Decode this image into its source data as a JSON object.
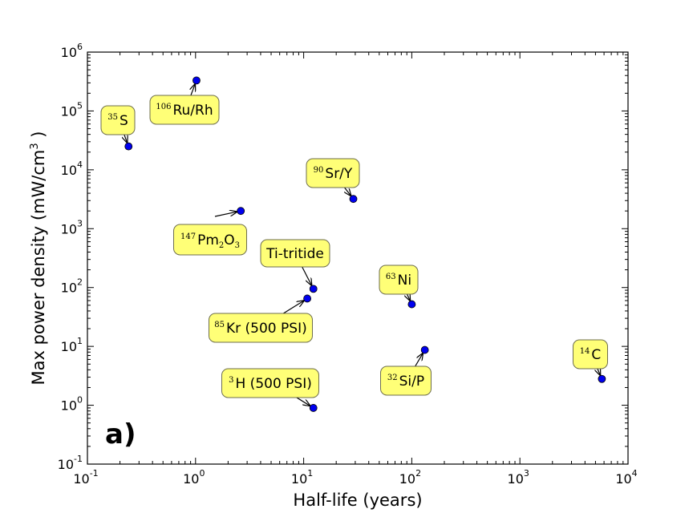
{
  "chart_data": {
    "type": "scatter",
    "xlabel": "Half-life (years)",
    "ylabel": "Max power density (mW/cm",
    "ylabel_sup": "3",
    "ylabel_end": " )",
    "xscale": "log",
    "yscale": "log",
    "xlim": [
      0.1,
      10000
    ],
    "ylim": [
      0.1,
      1000000
    ],
    "x_ticks": [
      {
        "base": "10",
        "exp": "-1"
      },
      {
        "base": "10",
        "exp": "0"
      },
      {
        "base": "10",
        "exp": "1"
      },
      {
        "base": "10",
        "exp": "2"
      },
      {
        "base": "10",
        "exp": "3"
      },
      {
        "base": "10",
        "exp": "4"
      }
    ],
    "y_ticks": [
      {
        "base": "10",
        "exp": "-1"
      },
      {
        "base": "10",
        "exp": "0"
      },
      {
        "base": "10",
        "exp": "1"
      },
      {
        "base": "10",
        "exp": "2"
      },
      {
        "base": "10",
        "exp": "3"
      },
      {
        "base": "10",
        "exp": "4"
      },
      {
        "base": "10",
        "exp": "5"
      },
      {
        "base": "10",
        "exp": "6"
      }
    ],
    "panel_label": "a)",
    "marker_color": "#0000ee",
    "annotation_color": "#ffff77",
    "points": [
      {
        "x": 0.24,
        "y": 25000,
        "mass": "35",
        "label": "S"
      },
      {
        "x": 1.02,
        "y": 330000,
        "mass": "106",
        "label": "Ru/Rh"
      },
      {
        "x": 28.8,
        "y": 3200,
        "mass": "90",
        "label": "Sr/Y"
      },
      {
        "x": 2.62,
        "y": 2000,
        "mass": "147",
        "label": "Pm",
        "sub1": "2",
        "label2": "O",
        "sub2": "3"
      },
      {
        "x": 12.3,
        "y": 95,
        "mass": "",
        "label": "Ti-tritide"
      },
      {
        "x": 10.8,
        "y": 65,
        "mass": "85",
        "label": "Kr (500 PSI)"
      },
      {
        "x": 100,
        "y": 52,
        "mass": "63",
        "label": "Ni"
      },
      {
        "x": 132,
        "y": 8.7,
        "mass": "32",
        "label": "Si/P"
      },
      {
        "x": 12.3,
        "y": 0.9,
        "mass": "3",
        "label": "H (500 PSI)"
      },
      {
        "x": 5730,
        "y": 2.8,
        "mass": "14",
        "label": "C"
      }
    ]
  }
}
